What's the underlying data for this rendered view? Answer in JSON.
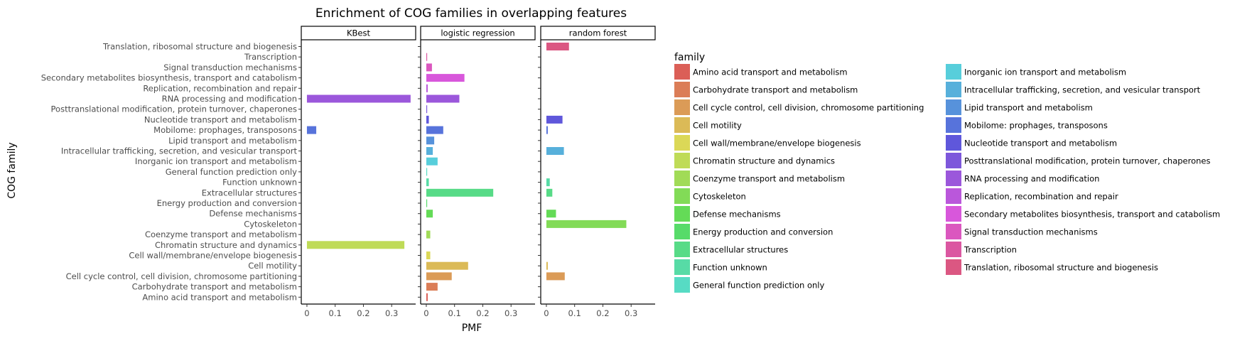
{
  "chart_data": {
    "type": "bar",
    "orientation": "horizontal",
    "title": "Enrichment of COG families in overlapping features",
    "xlabel": "PMF",
    "ylabel": "COG family",
    "xlim": [
      -0.02,
      0.385
    ],
    "xticks": [
      0,
      0.1,
      0.2,
      0.3
    ],
    "xtick_labels": [
      "0",
      "0.1",
      "0.2",
      "0.3"
    ],
    "grid": false,
    "legend_title": "family",
    "legend_position": "right",
    "categories": [
      "Amino acid transport and metabolism",
      "Carbohydrate transport and metabolism",
      "Cell cycle control, cell division, chromosome partitioning",
      "Cell motility",
      "Cell wall/membrane/envelope biogenesis",
      "Chromatin structure and dynamics",
      "Coenzyme transport and metabolism",
      "Cytoskeleton",
      "Defense mechanisms",
      "Energy production and conversion",
      "Extracellular structures",
      "Function unknown",
      "General function prediction only",
      "Inorganic ion transport and metabolism",
      "Intracellular trafficking, secretion, and vesicular transport",
      "Lipid transport and metabolism",
      "Mobilome: prophages, transposons",
      "Nucleotide transport and metabolism",
      "Posttranslational modification, protein turnover, chaperones",
      "RNA processing and modification",
      "Replication, recombination and repair",
      "Secondary metabolites biosynthesis, transport and catabolism",
      "Signal transduction mechanisms",
      "Transcription",
      "Translation, ribosomal structure and biogenesis"
    ],
    "colors": [
      "#db5f57",
      "#db7d57",
      "#db9b57",
      "#dbba57",
      "#dbd857",
      "#bfdb57",
      "#a1db57",
      "#82db57",
      "#64db57",
      "#57db69",
      "#57db87",
      "#57dba6",
      "#57dbc4",
      "#57cedb",
      "#57b0db",
      "#5792db",
      "#5773db",
      "#5f57db",
      "#7d57db",
      "#9b57db",
      "#ba57db",
      "#d857db",
      "#db57bf",
      "#db57a1",
      "#db5782"
    ],
    "panels": [
      {
        "name": "KBest",
        "values": [
          0,
          0,
          0,
          0,
          0,
          0.345,
          0,
          0,
          0,
          0,
          0,
          0,
          0,
          0,
          0,
          0,
          0.033,
          0,
          0,
          0.367,
          0,
          0,
          0,
          0,
          0
        ]
      },
      {
        "name": "logistic regression",
        "values": [
          0.005,
          0.04,
          0.09,
          0.148,
          0.014,
          0,
          0.014,
          0,
          0.023,
          0.003,
          0.237,
          0.009,
          0.003,
          0.04,
          0.023,
          0.028,
          0.06,
          0.009,
          0.003,
          0.117,
          0.005,
          0.135,
          0.02,
          0.003,
          0
        ]
      },
      {
        "name": "random forest",
        "values": [
          0,
          0,
          0.065,
          0.005,
          0,
          0,
          0,
          0.283,
          0.034,
          0,
          0.021,
          0.012,
          0,
          0,
          0.062,
          0,
          0.005,
          0.057,
          0,
          0,
          0,
          0,
          0,
          0,
          0.08
        ]
      }
    ]
  }
}
